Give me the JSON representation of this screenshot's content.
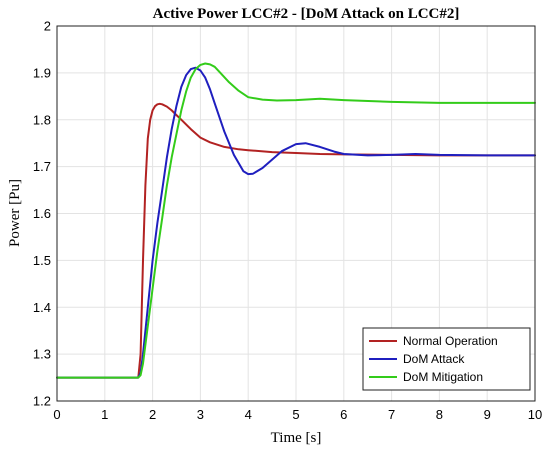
{
  "chart_data": {
    "type": "line",
    "title": "Active Power LCC#2 - [DoM Attack on LCC#2]",
    "xlabel": "Time [s]",
    "ylabel": "Power [Pu]",
    "xlim": [
      0,
      10
    ],
    "ylim": [
      1.2,
      2.0
    ],
    "xticks": [
      0,
      1,
      2,
      3,
      4,
      5,
      6,
      7,
      8,
      9,
      10
    ],
    "yticks": [
      1.2,
      1.3,
      1.4,
      1.5,
      1.6,
      1.7,
      1.8,
      1.9,
      2.0
    ],
    "ytick_labels": [
      "1.2",
      "1.3",
      "1.4",
      "1.5",
      "1.6",
      "1.7",
      "1.8",
      "1.9",
      "2"
    ],
    "grid": true,
    "legend_position": "bottom-right",
    "series": [
      {
        "name": "Normal Operation",
        "color": "#b22222",
        "x": [
          0,
          1.7,
          1.75,
          1.8,
          1.85,
          1.9,
          1.95,
          2.0,
          2.05,
          2.1,
          2.15,
          2.2,
          2.3,
          2.4,
          2.5,
          2.6,
          2.8,
          3.0,
          3.2,
          3.5,
          3.8,
          4.0,
          4.5,
          5.0,
          5.5,
          6.0,
          7.0,
          8.0,
          9.0,
          10.0
        ],
        "y": [
          1.25,
          1.25,
          1.3,
          1.5,
          1.66,
          1.76,
          1.8,
          1.82,
          1.829,
          1.833,
          1.834,
          1.833,
          1.828,
          1.82,
          1.81,
          1.8,
          1.78,
          1.762,
          1.752,
          1.742,
          1.737,
          1.735,
          1.731,
          1.729,
          1.727,
          1.726,
          1.725,
          1.724,
          1.724,
          1.724
        ]
      },
      {
        "name": "DoM Attack",
        "color": "#1f1fbf",
        "x": [
          0,
          1.7,
          1.75,
          1.8,
          1.9,
          2.0,
          2.1,
          2.2,
          2.3,
          2.4,
          2.5,
          2.6,
          2.7,
          2.8,
          2.9,
          3.0,
          3.1,
          3.2,
          3.3,
          3.5,
          3.7,
          3.9,
          4.0,
          4.1,
          4.3,
          4.5,
          4.7,
          5.0,
          5.2,
          5.5,
          5.8,
          6.0,
          6.5,
          7.0,
          7.5,
          8.0,
          9.0,
          10.0
        ],
        "y": [
          1.25,
          1.25,
          1.26,
          1.3,
          1.4,
          1.5,
          1.58,
          1.65,
          1.72,
          1.78,
          1.83,
          1.87,
          1.895,
          1.908,
          1.911,
          1.905,
          1.89,
          1.865,
          1.835,
          1.775,
          1.725,
          1.69,
          1.684,
          1.685,
          1.697,
          1.715,
          1.733,
          1.748,
          1.75,
          1.742,
          1.732,
          1.727,
          1.724,
          1.725,
          1.727,
          1.725,
          1.724,
          1.724
        ]
      },
      {
        "name": "DoM Mitigation",
        "color": "#33cc1a",
        "x": [
          0,
          1.7,
          1.75,
          1.8,
          1.9,
          2.0,
          2.1,
          2.2,
          2.3,
          2.4,
          2.5,
          2.6,
          2.7,
          2.8,
          2.9,
          3.0,
          3.1,
          3.2,
          3.3,
          3.4,
          3.6,
          3.8,
          4.0,
          4.3,
          4.6,
          5.0,
          5.5,
          6.0,
          7.0,
          8.0,
          9.0,
          10.0
        ],
        "y": [
          1.25,
          1.25,
          1.255,
          1.28,
          1.36,
          1.44,
          1.52,
          1.59,
          1.66,
          1.72,
          1.77,
          1.82,
          1.86,
          1.89,
          1.908,
          1.917,
          1.92,
          1.918,
          1.913,
          1.902,
          1.88,
          1.862,
          1.848,
          1.843,
          1.841,
          1.842,
          1.845,
          1.842,
          1.838,
          1.836,
          1.836,
          1.836
        ]
      }
    ]
  }
}
